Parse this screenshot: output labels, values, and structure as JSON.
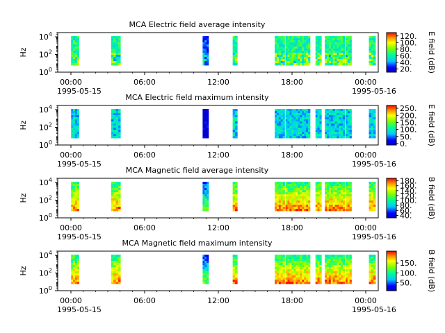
{
  "chart_data": [
    {
      "type": "heatmap",
      "title": "MCA  Electric field average intensity",
      "ylabel": "Hz",
      "ylim": [
        1,
        30000
      ],
      "yscale": "log",
      "yticks": [
        {
          "exp": "0"
        },
        {
          "exp": "2"
        },
        {
          "exp": "4"
        }
      ],
      "xlabel": "",
      "xticks": [
        "00:00",
        "06:00",
        "12:00",
        "18:00",
        "00:00"
      ],
      "xdates": [
        "1995-05-15",
        "",
        "",
        "",
        "1995-05-16"
      ],
      "colorbar": {
        "label": "E field (dB)",
        "min": 10,
        "max": 130,
        "ticks": [
          "20.",
          "40.",
          "60.",
          "80.",
          "100.",
          "120."
        ],
        "tick_values": [
          20,
          40,
          60,
          80,
          100,
          120
        ]
      },
      "data_blocks_hours": [
        [
          1.0,
          1.6
        ],
        [
          4.0,
          4.7
        ],
        [
          10.85,
          11.3
        ],
        [
          13.1,
          13.45
        ],
        [
          16.25,
          17.0
        ],
        [
          17.05,
          18.9
        ],
        [
          19.3,
          19.75
        ],
        [
          20.0,
          21.5
        ],
        [
          21.55,
          22.0
        ],
        [
          23.3,
          23.8
        ]
      ],
      "level": 0.45
    },
    {
      "type": "heatmap",
      "title": "MCA  Electric field maximum intensity",
      "ylabel": "Hz",
      "ylim": [
        1,
        30000
      ],
      "yscale": "log",
      "yticks": [
        {
          "exp": "0"
        },
        {
          "exp": "2"
        },
        {
          "exp": "4"
        }
      ],
      "xlabel": "",
      "xticks": [
        "00:00",
        "06:00",
        "12:00",
        "18:00",
        "00:00"
      ],
      "xdates": [
        "1995-05-15",
        "",
        "",
        "",
        "1995-05-16"
      ],
      "colorbar": {
        "label": "E field (dB)",
        "min": -10,
        "max": 270,
        "ticks": [
          "0.",
          "50.",
          "100.",
          "150.",
          "200.",
          "250."
        ],
        "tick_values": [
          0,
          50,
          100,
          150,
          200,
          250
        ]
      },
      "data_blocks_hours": [
        [
          1.0,
          1.6
        ],
        [
          4.0,
          4.7
        ],
        [
          10.85,
          11.3
        ],
        [
          13.1,
          13.45
        ],
        [
          16.25,
          17.0
        ],
        [
          17.05,
          18.9
        ],
        [
          19.3,
          19.75
        ],
        [
          20.0,
          21.5
        ],
        [
          21.55,
          22.0
        ],
        [
          23.3,
          23.8
        ]
      ],
      "level": 0.33
    },
    {
      "type": "heatmap",
      "title": "MCA  Magnetic field average intensity",
      "ylabel": "Hz",
      "ylim": [
        1,
        30000
      ],
      "yscale": "log",
      "yticks": [
        {
          "exp": "0"
        },
        {
          "exp": "2"
        },
        {
          "exp": "4"
        }
      ],
      "xlabel": "",
      "xticks": [
        "00:00",
        "06:00",
        "12:00",
        "18:00",
        "00:00"
      ],
      "xdates": [
        "1995-05-15",
        "",
        "",
        "",
        "1995-05-16"
      ],
      "colorbar": {
        "label": "B field (dB)",
        "min": 30,
        "max": 190,
        "ticks": [
          "40.",
          "60.",
          "80.",
          "100.",
          "120.",
          "140.",
          "160.",
          "180."
        ],
        "tick_values": [
          40,
          60,
          80,
          100,
          120,
          140,
          160,
          180
        ]
      },
      "data_blocks_hours": [
        [
          1.0,
          1.6
        ],
        [
          4.0,
          4.7
        ],
        [
          10.85,
          11.3
        ],
        [
          13.1,
          13.45
        ],
        [
          16.25,
          17.0
        ],
        [
          17.05,
          18.9
        ],
        [
          19.3,
          19.75
        ],
        [
          20.0,
          21.5
        ],
        [
          21.55,
          22.0
        ],
        [
          23.3,
          23.8
        ]
      ],
      "level": 0.55
    },
    {
      "type": "heatmap",
      "title": "MCA  Magnetic field maximum intensity",
      "ylabel": "Hz",
      "ylim": [
        1,
        30000
      ],
      "yscale": "log",
      "yticks": [
        {
          "exp": "0"
        },
        {
          "exp": "2"
        },
        {
          "exp": "4"
        }
      ],
      "xlabel": "",
      "xticks": [
        "00:00",
        "06:00",
        "12:00",
        "18:00",
        "00:00"
      ],
      "xdates": [
        "1995-05-15",
        "",
        "",
        "",
        "1995-05-16"
      ],
      "colorbar": {
        "label": "B field (dB)",
        "min": 10,
        "max": 210,
        "ticks": [
          "50.",
          "100.",
          "150."
        ],
        "tick_values": [
          50,
          100,
          150
        ]
      },
      "data_blocks_hours": [
        [
          1.0,
          1.6
        ],
        [
          4.0,
          4.7
        ],
        [
          10.85,
          11.3
        ],
        [
          13.1,
          13.45
        ],
        [
          16.25,
          17.0
        ],
        [
          17.05,
          18.9
        ],
        [
          19.3,
          19.75
        ],
        [
          20.0,
          21.5
        ],
        [
          21.55,
          22.0
        ],
        [
          23.3,
          23.8
        ]
      ],
      "level": 0.55
    }
  ]
}
